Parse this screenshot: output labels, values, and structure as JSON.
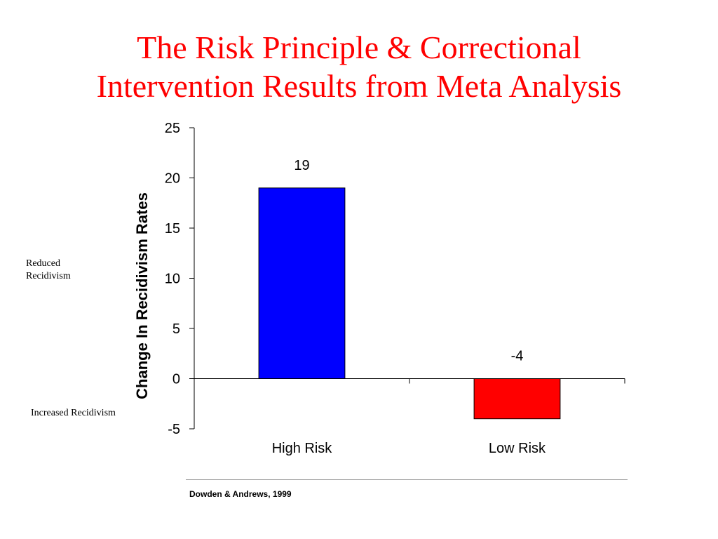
{
  "slide": {
    "title_lines": [
      "The Risk Principle & Correctional",
      "Intervention Results from Meta Analysis"
    ],
    "reduced_label_lines": [
      "Reduced",
      "Recidivism"
    ],
    "increased_label": "Increased Recidivism",
    "source": "Dowden & Andrews, 1999"
  },
  "colors": {
    "title": "#ff0000",
    "high_risk_bar": "#0000ff",
    "low_risk_bar": "#ff0000"
  },
  "chart_data": {
    "type": "bar",
    "categories": [
      "High Risk",
      "Low Risk"
    ],
    "values": [
      19,
      -4
    ],
    "data_labels": [
      "19",
      "-4"
    ],
    "colors": [
      "#0000ff",
      "#ff0000"
    ],
    "title": "",
    "xlabel": "",
    "ylabel": "Change In Recidivism Rates",
    "ylim": [
      -5,
      25
    ],
    "yticks": [
      -5,
      0,
      5,
      10,
      15,
      20,
      25
    ],
    "grid": false,
    "legend": "none"
  }
}
